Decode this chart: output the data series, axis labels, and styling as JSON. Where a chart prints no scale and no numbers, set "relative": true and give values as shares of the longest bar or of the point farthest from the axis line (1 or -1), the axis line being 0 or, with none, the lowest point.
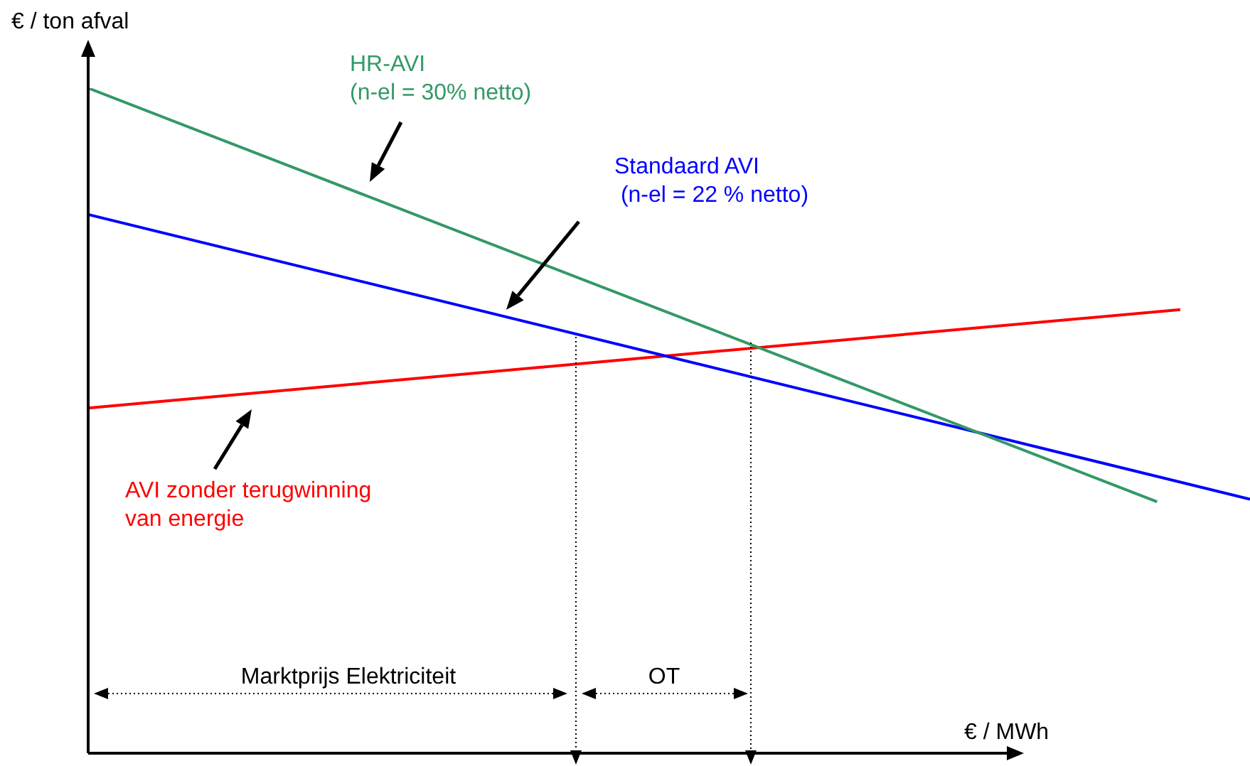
{
  "chart_data": {
    "type": "line",
    "relative": true,
    "xlabel": "€ / MWh",
    "ylabel": "€ / ton afval",
    "marker": "none",
    "line_style": "solid",
    "categories": [
      null,
      null,
      null,
      null,
      null,
      null,
      null,
      null,
      null,
      null,
      null,
      null,
      null,
      null,
      null,
      null,
      null,
      null,
      null,
      null,
      null,
      null,
      null,
      null,
      null,
      null,
      null,
      null,
      null,
      null,
      null,
      null,
      null,
      null,
      null,
      null,
      null,
      null,
      null,
      null,
      null,
      null,
      null,
      null,
      null,
      null,
      null,
      null,
      null,
      null,
      null
    ],
    "series": [
      {
        "name": "HR-AVI\n(n-el = 30% netto)",
        "color": "#339966",
        "values": [
          1,
          null,
          null,
          null,
          null,
          null,
          null,
          null,
          null,
          null,
          null,
          null,
          null,
          null,
          null,
          null,
          null,
          null,
          null,
          null,
          null,
          null,
          null,
          null,
          null,
          null,
          null,
          null,
          null,
          null,
          null,
          null,
          null,
          null,
          null,
          null,
          null,
          null,
          null,
          null,
          null,
          null,
          null,
          null,
          null,
          null,
          0.378,
          null,
          null,
          null,
          null
        ]
      },
      {
        "name": "Standaard AVI\n (n-el = 22 % netto)",
        "color": "#0000ff",
        "values": [
          0.81,
          null,
          null,
          null,
          null,
          null,
          null,
          null,
          null,
          null,
          null,
          null,
          null,
          null,
          null,
          null,
          null,
          null,
          null,
          null,
          null,
          null,
          null,
          null,
          null,
          null,
          null,
          null,
          null,
          null,
          null,
          null,
          null,
          null,
          null,
          null,
          null,
          null,
          null,
          null,
          null,
          null,
          null,
          null,
          null,
          null,
          null,
          null,
          null,
          null,
          0.382
        ]
      },
      {
        "name": "AVI zonder terugwinning\nvan energie",
        "color": "#ff0000",
        "values": [
          0.519,
          null,
          null,
          null,
          null,
          null,
          null,
          null,
          null,
          null,
          null,
          null,
          null,
          null,
          null,
          null,
          null,
          null,
          null,
          null,
          null,
          null,
          null,
          null,
          null,
          null,
          null,
          null,
          null,
          null,
          null,
          null,
          null,
          null,
          null,
          null,
          null,
          null,
          null,
          null,
          null,
          null,
          null,
          null,
          null,
          null,
          null,
          0.667,
          null,
          null,
          null
        ]
      }
    ],
    "annotations": [
      "Marktprijs Elektriciteit",
      "OT"
    ]
  }
}
